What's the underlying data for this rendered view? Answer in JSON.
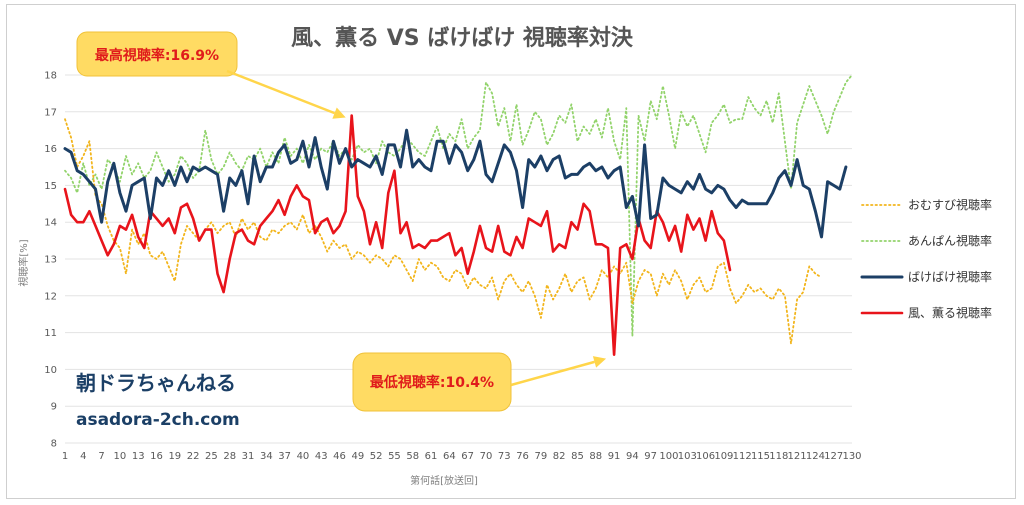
{
  "chart_data": {
    "type": "line",
    "title": "風、薫る VS ばけばけ 視聴率対決",
    "xlabel": "第何話[放送回]",
    "ylabel": "視聴率[%]",
    "ylim": [
      8,
      18
    ],
    "yticks": [
      8,
      9,
      10,
      11,
      12,
      13,
      14,
      15,
      16,
      17,
      18
    ],
    "xlim": [
      1,
      130
    ],
    "xtick_start": 1,
    "xtick_step": 3,
    "xtick_end": 130,
    "grid": true,
    "legend_position": "right",
    "series": [
      {
        "name": "おむすび視聴率",
        "color": "#f2b51c",
        "style": "dotted",
        "width": 1.8,
        "values": [
          16.8,
          16.3,
          15.5,
          15.8,
          16.2,
          14.7,
          14.5,
          13.9,
          13.5,
          13.3,
          12.6,
          13.8,
          13.4,
          13.7,
          13.1,
          13.0,
          13.2,
          12.8,
          12.4,
          13.4,
          13.9,
          13.7,
          13.5,
          13.8,
          14.0,
          13.7,
          13.9,
          14.0,
          13.6,
          14.1,
          13.8,
          14.0,
          13.6,
          13.5,
          13.8,
          13.7,
          13.9,
          14.0,
          13.8,
          14.2,
          13.7,
          13.9,
          13.6,
          13.2,
          13.5,
          13.3,
          13.4,
          13.0,
          13.2,
          13.1,
          12.9,
          13.1,
          13.0,
          12.8,
          13.1,
          13.0,
          12.7,
          12.4,
          13.0,
          12.7,
          12.9,
          12.8,
          12.5,
          12.4,
          12.7,
          12.6,
          12.2,
          12.5,
          12.3,
          12.2,
          12.5,
          11.9,
          12.4,
          12.6,
          12.3,
          12.1,
          12.4,
          12.0,
          11.4,
          12.3,
          11.9,
          12.2,
          12.6,
          12.1,
          12.4,
          12.5,
          11.9,
          12.2,
          12.7,
          12.5,
          12.8,
          12.6,
          12.9,
          11.8,
          12.4,
          12.7,
          12.6,
          12.0,
          12.6,
          12.3,
          12.7,
          12.4,
          11.9,
          12.3,
          12.5,
          12.1,
          12.2,
          12.8,
          12.9,
          12.2,
          11.8,
          12.0,
          12.3,
          12.1,
          12.2,
          12.0,
          11.9,
          12.2,
          12.0,
          10.7,
          11.9,
          12.1,
          12.8,
          12.6,
          12.5
        ],
        "note": "values rendered 1..124"
      },
      {
        "name": "あんぱん視聴率",
        "color": "#92d36b",
        "style": "dotted",
        "width": 1.8,
        "values": [
          15.4,
          15.2,
          14.8,
          15.6,
          15.0,
          15.3,
          14.9,
          15.7,
          15.5,
          15.1,
          15.8,
          15.3,
          15.6,
          15.2,
          15.4,
          15.9,
          15.5,
          15.1,
          15.3,
          15.8,
          15.6,
          15.2,
          15.4,
          16.5,
          15.7,
          15.3,
          15.5,
          15.9,
          15.6,
          15.4,
          15.8,
          15.7,
          16.0,
          15.5,
          15.9,
          15.6,
          16.3,
          15.8,
          16.0,
          15.6,
          16.1,
          15.7,
          16.0,
          15.9,
          16.2,
          15.8,
          16.0,
          15.7,
          16.1,
          15.9,
          16.0,
          15.6,
          16.2,
          15.9,
          15.8,
          16.0,
          16.3,
          16.1,
          15.9,
          15.8,
          16.2,
          16.6,
          16.0,
          16.4,
          16.2,
          16.8,
          16.0,
          16.3,
          16.5,
          17.8,
          17.5,
          16.6,
          17.1,
          16.2,
          17.2,
          16.1,
          16.5,
          17.0,
          16.8,
          16.1,
          16.4,
          16.9,
          16.7,
          17.2,
          16.2,
          16.6,
          16.4,
          16.8,
          16.3,
          17.1,
          16.2,
          15.7,
          17.1,
          10.9,
          16.9,
          16.2,
          17.3,
          16.8,
          17.7,
          16.9,
          16.0,
          17.0,
          16.6,
          16.9,
          16.4,
          15.9,
          16.7,
          16.9,
          17.2,
          16.7,
          16.8,
          16.8,
          17.4,
          17.1,
          16.9,
          17.3,
          16.7,
          17.5,
          16.2,
          14.9,
          16.7,
          17.2,
          17.7,
          17.3,
          16.9,
          16.4,
          17.0,
          17.4,
          17.8,
          18.0
        ],
        "note": "values rendered 1..130"
      },
      {
        "name": "ばけばけ視聴率",
        "color": "#1c3f66",
        "style": "solid",
        "width": 3,
        "values": [
          16.0,
          15.9,
          15.4,
          15.3,
          15.1,
          14.9,
          14.0,
          15.1,
          15.6,
          14.8,
          14.3,
          15.0,
          15.1,
          15.2,
          14.1,
          15.2,
          15.0,
          15.4,
          15.0,
          15.5,
          15.1,
          15.5,
          15.4,
          15.5,
          15.4,
          15.3,
          14.3,
          15.2,
          15.0,
          15.4,
          14.5,
          15.8,
          15.1,
          15.5,
          15.5,
          15.9,
          16.1,
          15.6,
          15.7,
          16.2,
          15.5,
          16.3,
          15.5,
          14.9,
          16.2,
          15.6,
          16.0,
          15.5,
          15.7,
          15.6,
          15.5,
          15.8,
          15.3,
          16.1,
          16.1,
          15.5,
          16.5,
          15.5,
          15.7,
          15.5,
          15.4,
          16.2,
          16.2,
          15.6,
          16.1,
          15.9,
          15.4,
          15.7,
          16.2,
          15.3,
          15.1,
          15.6,
          16.1,
          15.9,
          15.4,
          14.4,
          15.7,
          15.5,
          15.8,
          15.4,
          15.7,
          15.8,
          15.2,
          15.3,
          15.3,
          15.5,
          15.6,
          15.4,
          15.5,
          15.2,
          15.4,
          15.5,
          14.4,
          14.7,
          13.9,
          16.1,
          14.1,
          14.2,
          15.2,
          15.0,
          14.9,
          14.8,
          15.1,
          14.9,
          15.3,
          14.9,
          14.8,
          15.0,
          14.9,
          14.6,
          14.4,
          14.6,
          14.5,
          14.5,
          14.5,
          14.5,
          14.8,
          15.2,
          15.4,
          15.0,
          15.7,
          15.0,
          14.9,
          14.3,
          13.6,
          15.1,
          15.0,
          14.9,
          15.5
        ],
        "note": "values rendered 1..124"
      },
      {
        "name": "風、薫る視聴率",
        "color": "#e8141b",
        "style": "solid",
        "width": 2.6,
        "values": [
          14.9,
          14.2,
          14.0,
          14.0,
          14.3,
          13.9,
          13.5,
          13.1,
          13.4,
          13.9,
          13.8,
          14.2,
          13.6,
          13.3,
          14.3,
          14.1,
          13.9,
          14.1,
          13.7,
          14.4,
          14.5,
          14.1,
          13.5,
          13.8,
          13.8,
          12.6,
          12.1,
          13.0,
          13.7,
          13.8,
          13.5,
          13.4,
          13.9,
          14.1,
          14.3,
          14.6,
          14.2,
          14.7,
          15.0,
          14.7,
          14.6,
          13.7,
          14.0,
          14.1,
          13.7,
          13.9,
          14.3,
          16.9,
          14.7,
          14.3,
          13.4,
          14.0,
          13.3,
          14.8,
          15.4,
          13.7,
          14.0,
          13.3,
          13.4,
          13.3,
          13.5,
          13.5,
          13.6,
          13.7,
          13.1,
          13.3,
          12.6,
          13.2,
          13.9,
          13.3,
          13.2,
          13.9,
          13.2,
          13.1,
          13.6,
          13.3,
          14.1,
          14.0,
          13.9,
          14.3,
          13.2,
          13.4,
          13.3,
          14.0,
          13.8,
          14.5,
          14.3,
          13.4,
          13.4,
          13.3,
          10.4,
          13.3,
          13.4,
          13.0,
          14.1,
          13.5,
          13.3,
          14.3,
          14.0,
          13.5,
          13.9,
          13.2,
          14.2,
          13.8,
          14.1,
          13.5,
          14.3,
          13.7,
          13.5,
          12.7
        ],
        "note": "values rendered 1..110"
      }
    ],
    "annotations": [
      {
        "text": "最高視聴率:16.9%"
      },
      {
        "text": "最低視聴率:10.4%"
      }
    ]
  },
  "watermark": {
    "line1": "朝ドラちゃんねる",
    "line2": "asadora-2ch.com"
  }
}
